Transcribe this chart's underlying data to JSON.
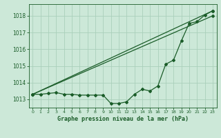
{
  "title": "Graphe pression niveau de la mer (hPa)",
  "bg_color": "#cce8d8",
  "grid_color": "#aacfbb",
  "line_color": "#1a5c28",
  "ylim": [
    1012.5,
    1018.7
  ],
  "xlim": [
    -0.5,
    23.5
  ],
  "yticks": [
    1013,
    1014,
    1015,
    1016,
    1017,
    1018
  ],
  "xticks": [
    0,
    1,
    2,
    3,
    4,
    5,
    6,
    7,
    8,
    9,
    10,
    11,
    12,
    13,
    14,
    15,
    16,
    17,
    18,
    19,
    20,
    21,
    22,
    23
  ],
  "upper_line": {
    "x0": 0,
    "y0": 1013.3,
    "x1": 23,
    "y1": 1018.3
  },
  "middle_line": {
    "x0": 0,
    "y0": 1013.3,
    "x1": 23,
    "y1": 1018.0
  },
  "hourly": [
    1013.3,
    1013.3,
    1013.35,
    1013.4,
    1013.3,
    1013.3,
    1013.25,
    1013.25,
    1013.25,
    1013.25,
    1012.75,
    1012.75,
    1012.85,
    1013.3,
    1013.6,
    1013.5,
    1013.8,
    1015.1,
    1015.35,
    1016.5,
    1017.55,
    1017.65,
    1018.05,
    1018.3
  ]
}
